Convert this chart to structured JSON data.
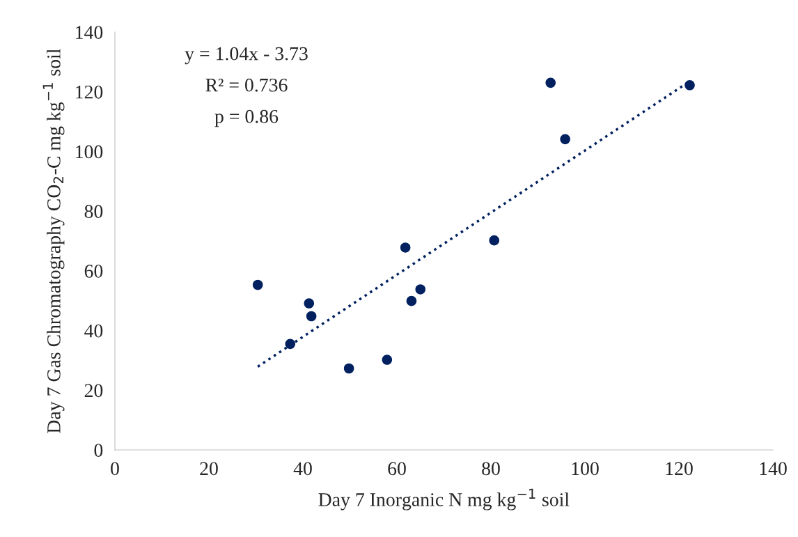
{
  "chart_data": {
    "type": "scatter",
    "xlabel": "Day 7 Inorganic N mg kg$^{−1}$ soil",
    "ylabel": "Day 7 Gas Chromatography CO$_{2}$-C mg kg$^{−1}$ soil",
    "xlim": [
      0,
      140
    ],
    "xticks": [
      0,
      20,
      40,
      60,
      80,
      100,
      120,
      140
    ],
    "ylim": [
      0,
      140
    ],
    "yticks": [
      0,
      20,
      40,
      60,
      80,
      100,
      120,
      140
    ],
    "grid": false,
    "legend": false,
    "series": [
      {
        "color": "#002060",
        "marker": "circle",
        "x": [
          30.4,
          37.3,
          41.3,
          41.8,
          49.8,
          57.9,
          61.8,
          63.1,
          65.0,
          80.7,
          92.7,
          95.8,
          122.3
        ],
        "values": [
          55.3,
          35.5,
          49.1,
          44.8,
          27.3,
          30.2,
          67.8,
          49.9,
          53.8,
          70.2,
          123.0,
          104.1,
          122.2
        ]
      },
      {
        "type": "line",
        "color": "#002060",
        "line_style": "dotted",
        "marker": "none",
        "x": [
          30.4,
          122.3
        ],
        "values": [
          27.9,
          123.5
        ]
      }
    ],
    "annotations": [
      "y = 1.04x - 3.73",
      "R² = 0.736",
      "p = 0.86"
    ]
  }
}
